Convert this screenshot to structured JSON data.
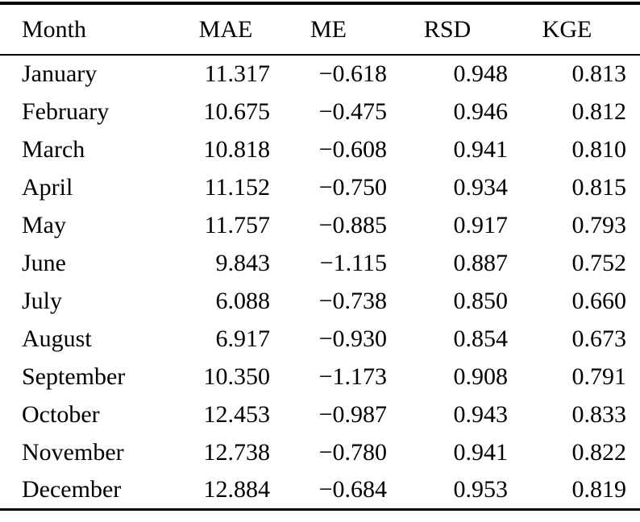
{
  "colors": {
    "background": "#ffffff",
    "text": "#000000",
    "rule": "#000000"
  },
  "table": {
    "headers": [
      "Month",
      "MAE",
      "ME",
      "RSD",
      "KGE"
    ],
    "rows": [
      [
        "January",
        "11.317",
        "−0.618",
        "0.948",
        "0.813"
      ],
      [
        "February",
        "10.675",
        "−0.475",
        "0.946",
        "0.812"
      ],
      [
        "March",
        "10.818",
        "−0.608",
        "0.941",
        "0.810"
      ],
      [
        "April",
        "11.152",
        "−0.750",
        "0.934",
        "0.815"
      ],
      [
        "May",
        "11.757",
        "−0.885",
        "0.917",
        "0.793"
      ],
      [
        "June",
        "9.843",
        "−1.115",
        "0.887",
        "0.752"
      ],
      [
        "July",
        "6.088",
        "−0.738",
        "0.850",
        "0.660"
      ],
      [
        "August",
        "6.917",
        "−0.930",
        "0.854",
        "0.673"
      ],
      [
        "September",
        "10.350",
        "−1.173",
        "0.908",
        "0.791"
      ],
      [
        "October",
        "12.453",
        "−0.987",
        "0.943",
        "0.833"
      ],
      [
        "November",
        "12.738",
        "−0.780",
        "0.941",
        "0.822"
      ],
      [
        "December",
        "12.884",
        "−0.684",
        "0.953",
        "0.819"
      ]
    ]
  }
}
